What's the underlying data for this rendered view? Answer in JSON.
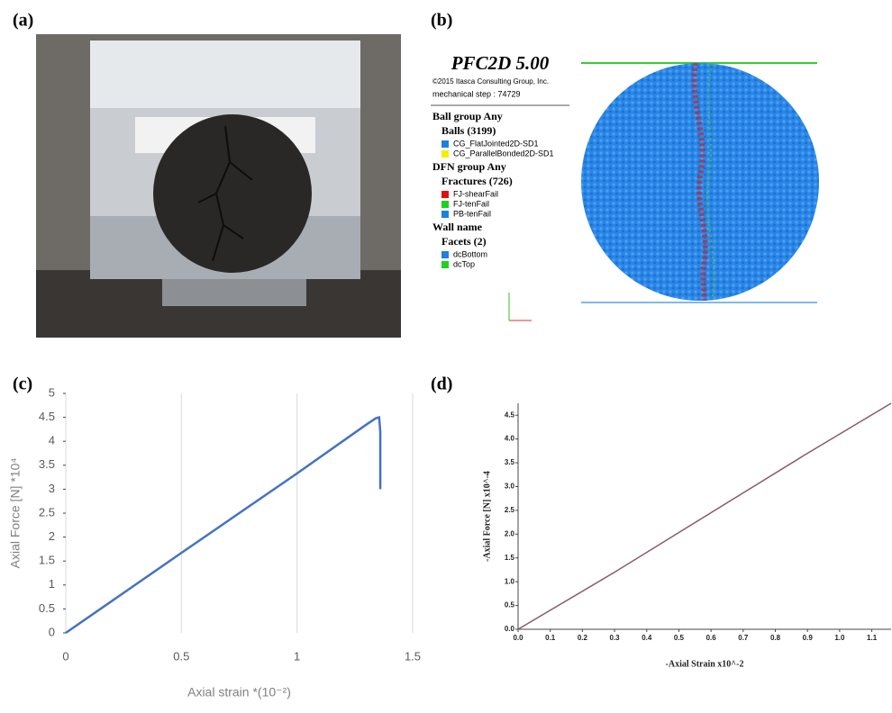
{
  "panels": {
    "a": "(a)",
    "b": "(b)",
    "c": "(c)",
    "d": "(d)"
  },
  "simulation": {
    "title": "PFC2D 5.00",
    "copyright": "©2015 Itasca Consulting Group, Inc.",
    "step": "mechanical step : 74729",
    "groups": [
      {
        "heading": "Ball group Any",
        "subheading": "Balls (3199)",
        "items": [
          {
            "label": "CG_FlatJointed2D-SD1",
            "color": "#1f7fe0"
          },
          {
            "label": "CG_ParallelBonded2D-SD1",
            "color": "#f0f000"
          }
        ]
      },
      {
        "heading": "DFN group Any",
        "subheading": "Fractures (726)",
        "items": [
          {
            "label": "FJ-shearFail",
            "color": "#e01010"
          },
          {
            "label": "FJ-tenFail",
            "color": "#20d020"
          },
          {
            "label": "PB-tenFail",
            "color": "#1f7fe0"
          }
        ]
      },
      {
        "heading": "Wall name",
        "subheading": "Facets (2)",
        "items": [
          {
            "label": "dcBottom",
            "color": "#1f7fe0"
          },
          {
            "label": "dcTop",
            "color": "#20d020"
          }
        ]
      }
    ]
  },
  "chart_data": [
    {
      "type": "line",
      "x_label": "Axial strain *(10⁻²)",
      "y_label": "Axial Force [N] *10⁴",
      "x": [
        0,
        0.5,
        1,
        1.3,
        1.34,
        1.355,
        1.36,
        1.36
      ],
      "series": [
        {
          "color": "#4472c4",
          "values": [
            0,
            1.67,
            3.33,
            4.35,
            4.48,
            4.5,
            4.2,
            3.0
          ]
        }
      ],
      "xlim": [
        0,
        1.5
      ],
      "xticks": [
        0,
        0.5,
        1,
        1.5
      ],
      "ylim": [
        0,
        5
      ],
      "yticks": [
        0,
        0.5,
        1,
        1.5,
        2,
        2.5,
        3,
        3.5,
        4,
        4.5,
        5
      ],
      "grid": "x"
    },
    {
      "type": "line",
      "x_label": "-Axial Strain x10^-2",
      "y_label": "-Axial Force [N] x10^-4",
      "x": [
        0,
        0.3,
        0.6,
        0.9,
        1.16
      ],
      "series": [
        {
          "color": "#8a5a6a",
          "values": [
            0,
            1.2,
            2.45,
            3.7,
            4.75
          ]
        }
      ],
      "xlim": [
        0,
        1.16
      ],
      "xticks": [
        {
          "value": 0,
          "label": "0.0"
        },
        0.1,
        0.2,
        0.3,
        0.4,
        0.5,
        0.6,
        0.7,
        0.8,
        0.9,
        {
          "value": 1,
          "label": "1.0"
        },
        1.1
      ],
      "ylim": [
        0,
        4.75
      ],
      "yticks": [
        {
          "value": 0,
          "label": "0.0"
        },
        0.5,
        {
          "value": 1,
          "label": "1.0"
        },
        1.5,
        {
          "value": 2,
          "label": "2.0"
        },
        2.5,
        {
          "value": 3,
          "label": "3.0"
        },
        3.5,
        {
          "value": 4,
          "label": "4.0"
        },
        4.5
      ],
      "grid": "none"
    }
  ]
}
